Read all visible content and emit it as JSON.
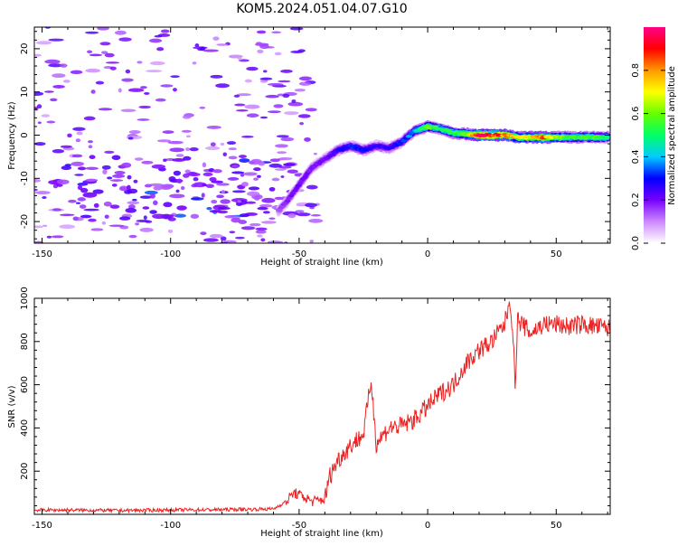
{
  "title": "KOM5.2024.051.04.07.G10",
  "chart_data": [
    {
      "type": "heatmap",
      "panel": "spectrogram",
      "xlabel": "Height of straight line (km)",
      "ylabel": "Frequency (Hz)",
      "xlim": [
        -153,
        71
      ],
      "ylim": [
        -25,
        25
      ],
      "x_ticks": [
        -150,
        -100,
        -50,
        0,
        50
      ],
      "y_ticks": [
        -20,
        -10,
        0,
        10,
        20
      ],
      "colorbar": {
        "label": "Normalized spectral amplitude",
        "range": [
          0,
          1
        ],
        "ticks": [
          0.0,
          0.2,
          0.4,
          0.6,
          0.8
        ],
        "colormap": [
          "#ffffff",
          "#cc88ff",
          "#7700ff",
          "#0000ff",
          "#00ccff",
          "#00ff66",
          "#66ff00",
          "#ffff00",
          "#ff9900",
          "#ff0000",
          "#ff0088"
        ]
      },
      "ridge": {
        "x": [
          -58,
          -55,
          -50,
          -45,
          -40,
          -35,
          -30,
          -25,
          -20,
          -15,
          -10,
          -5,
          0,
          5,
          10,
          15,
          20,
          25,
          30,
          35,
          40,
          45,
          50,
          55,
          60,
          65,
          70
        ],
        "freq": [
          -17.5,
          -15.5,
          -11.5,
          -7.5,
          -5.5,
          -3.5,
          -2.5,
          -3.5,
          -2.5,
          -3.0,
          -1.5,
          1.0,
          2.0,
          1.5,
          0.5,
          0.3,
          0.0,
          0.0,
          0.0,
          -0.5,
          -0.5,
          -0.5,
          -0.5,
          -0.5,
          -0.5,
          -0.5,
          -0.5
        ],
        "amplitude": [
          0.15,
          0.18,
          0.2,
          0.2,
          0.2,
          0.25,
          0.3,
          0.3,
          0.25,
          0.25,
          0.3,
          0.4,
          0.6,
          0.5,
          0.55,
          0.6,
          0.95,
          0.9,
          0.8,
          0.7,
          0.7,
          0.85,
          0.6,
          0.55,
          0.55,
          0.55,
          0.5
        ]
      }
    },
    {
      "type": "line",
      "panel": "snr",
      "xlabel": "Height of straight line (km)",
      "ylabel": "SNR (v/v)",
      "xlim": [
        -153,
        71
      ],
      "ylim": [
        0,
        1000
      ],
      "x_ticks": [
        -150,
        -100,
        -50,
        0,
        50
      ],
      "y_ticks": [
        200,
        400,
        600,
        800,
        1000
      ],
      "color": "#ee2222",
      "series": [
        {
          "x": [
            -153,
            -140,
            -120,
            -100,
            -80,
            -60,
            -55,
            -52,
            -48,
            -45,
            -40,
            -38,
            -35,
            -30,
            -25,
            -22,
            -20,
            -15,
            -10,
            -5,
            0,
            5,
            10,
            15,
            20,
            25,
            28,
            30,
            32,
            33,
            34,
            35,
            40,
            45,
            50,
            55,
            60,
            65,
            71
          ],
          "y": [
            20,
            20,
            18,
            20,
            22,
            25,
            60,
            100,
            80,
            60,
            70,
            180,
            250,
            320,
            370,
            620,
            330,
            400,
            410,
            440,
            500,
            560,
            600,
            700,
            760,
            800,
            850,
            880,
            1000,
            860,
            600,
            900,
            840,
            880,
            880,
            870,
            880,
            870,
            860
          ]
        }
      ]
    }
  ]
}
